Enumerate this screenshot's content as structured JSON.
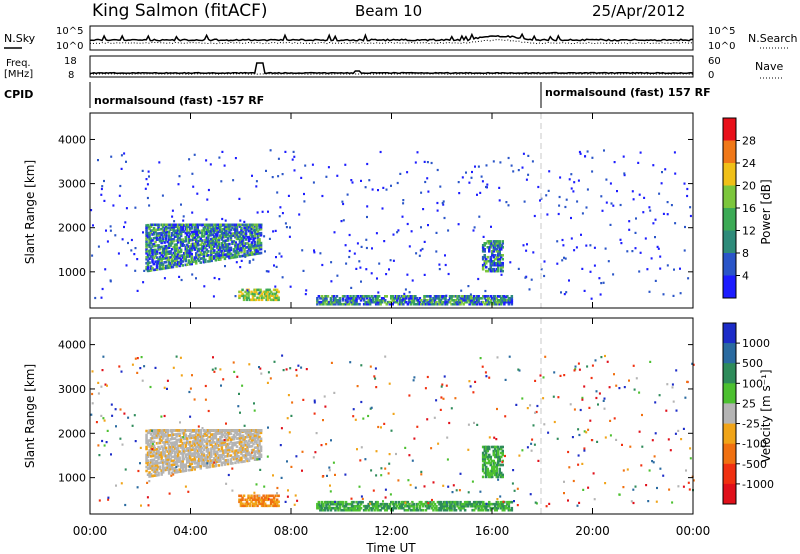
{
  "header": {
    "station": "King Salmon (fitACF)",
    "beam": "Beam 10",
    "date": "25/Apr/2012"
  },
  "sky_panel": {
    "left_label": "N.Sky",
    "right_label": "N.Search",
    "left_ticks": [
      "10^5",
      "10^0"
    ],
    "right_ticks": [
      "10^5",
      "10^0"
    ]
  },
  "freq_panel": {
    "left_label_1": "Freq.",
    "left_label_2": "[MHz]",
    "right_label": "Nave",
    "left_ticks": [
      "18",
      "8"
    ],
    "right_ticks": [
      "60",
      "0"
    ]
  },
  "cpid": {
    "label": "CPID",
    "segments": [
      {
        "start_hour": 0,
        "end_hour": 18,
        "text": "normalsound (fast) -157 RF"
      },
      {
        "start_hour": 18,
        "end_hour": 24,
        "text": "normalsound (fast) 157 RF"
      }
    ]
  },
  "x_axis": {
    "label": "Time UT",
    "ticks": [
      "00:00",
      "04:00",
      "08:00",
      "12:00",
      "16:00",
      "20:00",
      "00:00"
    ]
  },
  "chart_data": [
    {
      "type": "heatmap",
      "name": "power",
      "ylabel": "Slant Range [km]",
      "yticks": [
        "1000",
        "2000",
        "3000",
        "4000"
      ],
      "ylim": [
        180,
        4600
      ],
      "xlim": [
        0,
        24
      ],
      "colorbar": {
        "label": "Power [dB]",
        "ticks": [
          "4",
          "8",
          "12",
          "16",
          "20",
          "24",
          "28"
        ],
        "colors": [
          "#1c1cff",
          "#2a55c8",
          "#2e8b7a",
          "#3caa55",
          "#7cc63c",
          "#f0c018",
          "#f07818",
          "#e8101a"
        ]
      },
      "features": [
        {
          "hour_start": 5.9,
          "hour_end": 7.5,
          "range_start": 350,
          "range_end": 620,
          "level": "high"
        },
        {
          "hour_start": 9.0,
          "hour_end": 16.8,
          "range_start": 250,
          "range_end": 470,
          "level": "medium"
        },
        {
          "hour_start": 2.2,
          "hour_end": 6.8,
          "range_start": 1000,
          "range_end": 2050,
          "level": "medium"
        },
        {
          "hour_start": 15.6,
          "hour_end": 16.4,
          "range_start": 1000,
          "range_end": 1700,
          "level": "medium"
        }
      ]
    },
    {
      "type": "heatmap",
      "name": "velocity",
      "ylabel": "Slant Range [km]",
      "yticks": [
        "1000",
        "2000",
        "3000",
        "4000"
      ],
      "ylim": [
        180,
        4600
      ],
      "xlim": [
        0,
        24
      ],
      "colorbar": {
        "label": "Velocity [m s⁻¹]",
        "ticks": [
          "1000",
          "500",
          "100",
          "25",
          "-25",
          "-100",
          "-500",
          "-1000"
        ],
        "colors": [
          "#1c2cc8",
          "#2a6aa0",
          "#2e8b5a",
          "#4cc030",
          "#b4b4b4",
          "#f0a418",
          "#f07010",
          "#f03010",
          "#e0101a"
        ]
      },
      "features": [
        {
          "hour_start": 5.9,
          "hour_end": 7.5,
          "range_start": 350,
          "range_end": 620,
          "level": "negative"
        },
        {
          "hour_start": 9.0,
          "hour_end": 16.8,
          "range_start": 250,
          "range_end": 470,
          "level": "positive"
        },
        {
          "hour_start": 2.2,
          "hour_end": 6.8,
          "range_start": 1000,
          "range_end": 2050,
          "level": "ground"
        },
        {
          "hour_start": 15.6,
          "hour_end": 16.4,
          "range_start": 1000,
          "range_end": 1700,
          "level": "positive"
        }
      ]
    }
  ]
}
